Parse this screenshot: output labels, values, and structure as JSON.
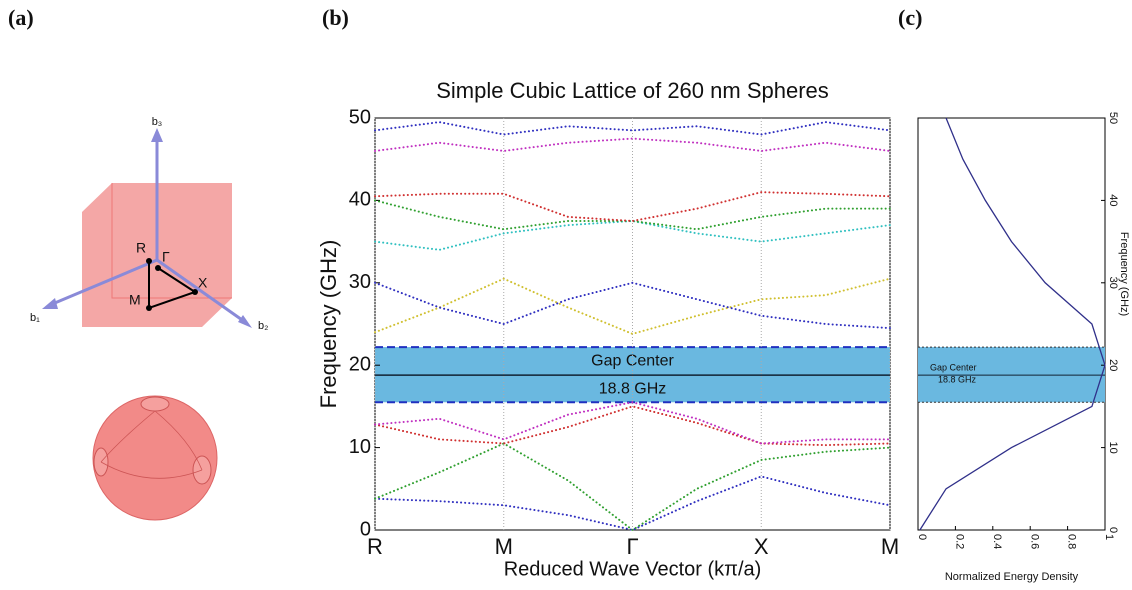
{
  "panel_labels": [
    "(a)",
    "(b)",
    "(c)"
  ],
  "diagram": {
    "labels": [
      "b₃",
      "b₁",
      "b₂",
      "R",
      "Γ",
      "M",
      "X"
    ]
  },
  "chart_data": [
    {
      "type": "line",
      "title": "Simple Cubic Lattice of 260 nm Spheres",
      "x_label": "Reduced Wave Vector (kπ/a)",
      "y_label": "Frequency (GHz)",
      "x": [
        0,
        0.5,
        1,
        1.5,
        2,
        2.5,
        3,
        3.5,
        4
      ],
      "xlim": [
        0,
        4
      ],
      "xticks": [
        {
          "value": 0,
          "label": "R"
        },
        {
          "value": 1,
          "label": "M"
        },
        {
          "value": 2,
          "label": "Γ"
        },
        {
          "value": 3,
          "label": "X"
        },
        {
          "value": 4,
          "label": "M"
        }
      ],
      "ylim": [
        0,
        50
      ],
      "yticks": [
        0,
        10,
        20,
        30,
        40,
        50
      ],
      "grid": true,
      "line_style": "dotted",
      "series": [
        {
          "color": "#3030c0",
          "values": [
            3.8,
            3.5,
            3.0,
            1.8,
            0,
            3.5,
            6.5,
            4.5,
            3.0
          ]
        },
        {
          "color": "#30a030",
          "values": [
            3.8,
            7,
            10.5,
            6,
            0,
            5,
            8.5,
            9.5,
            10
          ]
        },
        {
          "color": "#d03030",
          "values": [
            12.8,
            11,
            10.5,
            12.5,
            15,
            13,
            10.5,
            10.3,
            10.5
          ]
        },
        {
          "color": "#c030c0",
          "values": [
            12.8,
            13.5,
            11,
            14,
            15.5,
            13.5,
            10.5,
            11,
            11
          ]
        },
        {
          "color": "#d0c030",
          "values": [
            24,
            27,
            30.5,
            27,
            23.8,
            26,
            28,
            28.5,
            30.5
          ]
        },
        {
          "color": "#3030c0",
          "values": [
            30,
            27,
            25,
            28,
            30,
            28,
            26,
            25,
            24.5
          ]
        },
        {
          "color": "#30c0c0",
          "values": [
            35,
            34,
            36,
            37,
            37.5,
            36,
            35,
            36,
            37
          ]
        },
        {
          "color": "#30a030",
          "values": [
            40,
            38,
            36.5,
            37.5,
            37.5,
            36.5,
            38,
            39,
            39
          ]
        },
        {
          "color": "#d03030",
          "values": [
            40.5,
            40.8,
            40.8,
            38,
            37.5,
            39,
            41,
            40.8,
            40.5
          ]
        },
        {
          "color": "#c030c0",
          "values": [
            46,
            47,
            46,
            47,
            47.5,
            47,
            46,
            47,
            46
          ]
        },
        {
          "color": "#3030c0",
          "values": [
            48.5,
            49.5,
            48,
            49,
            48.5,
            49,
            48,
            49.5,
            48.5
          ]
        }
      ],
      "gap": {
        "low": 15.5,
        "high": 22.2,
        "center": 18.8,
        "color": "#6ab8e0"
      },
      "annotations": [
        "Gap Center",
        "18.8 GHz"
      ]
    },
    {
      "type": "line",
      "x_label": "Normalized Energy Density",
      "y_label": "Frequency (GHz)",
      "x": [
        0.01,
        0.15,
        0.5,
        0.93,
        1.0,
        0.93,
        0.68,
        0.5,
        0.36,
        0.24,
        0.15
      ],
      "xlim": [
        0,
        1
      ],
      "xticks": [
        0,
        0.2,
        0.4,
        0.6,
        0.8,
        1
      ],
      "ylim": [
        0,
        50
      ],
      "yticks": [
        0,
        10,
        20,
        30,
        40,
        50
      ],
      "series": [
        {
          "color": "#30308a",
          "values": [
            0,
            5,
            10,
            15,
            20,
            25,
            30,
            35,
            40,
            45,
            50
          ]
        }
      ],
      "gap": {
        "low": 15.5,
        "high": 22.2,
        "center": 18.8,
        "color": "#6ab8e0"
      },
      "annotations": [
        "Gap Center",
        "18.8 GHz"
      ]
    }
  ]
}
